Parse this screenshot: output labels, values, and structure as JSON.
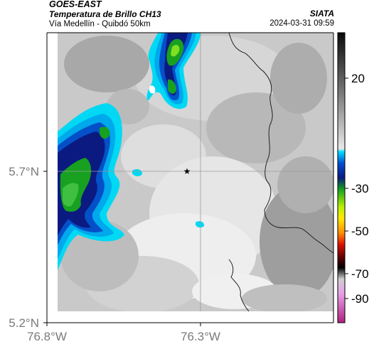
{
  "header": {
    "satellite": "GOES-EAST",
    "product": "Temperatura de Brillo CH13",
    "region": "Vía Medellín - Quibdó 50km",
    "organization": "SIATA",
    "timestamp": "2024-03-31 09:59"
  },
  "axes": {
    "lat_ticks": [
      "5.7°N",
      "5.2°N"
    ],
    "lon_ticks": [
      "76.8°W",
      "76.3°W"
    ]
  },
  "colorbar": {
    "ticks": [
      "20",
      "-30",
      "-50",
      "-70",
      "-90"
    ]
  },
  "marker": {
    "symbol": "★",
    "name": "reference-point"
  }
}
